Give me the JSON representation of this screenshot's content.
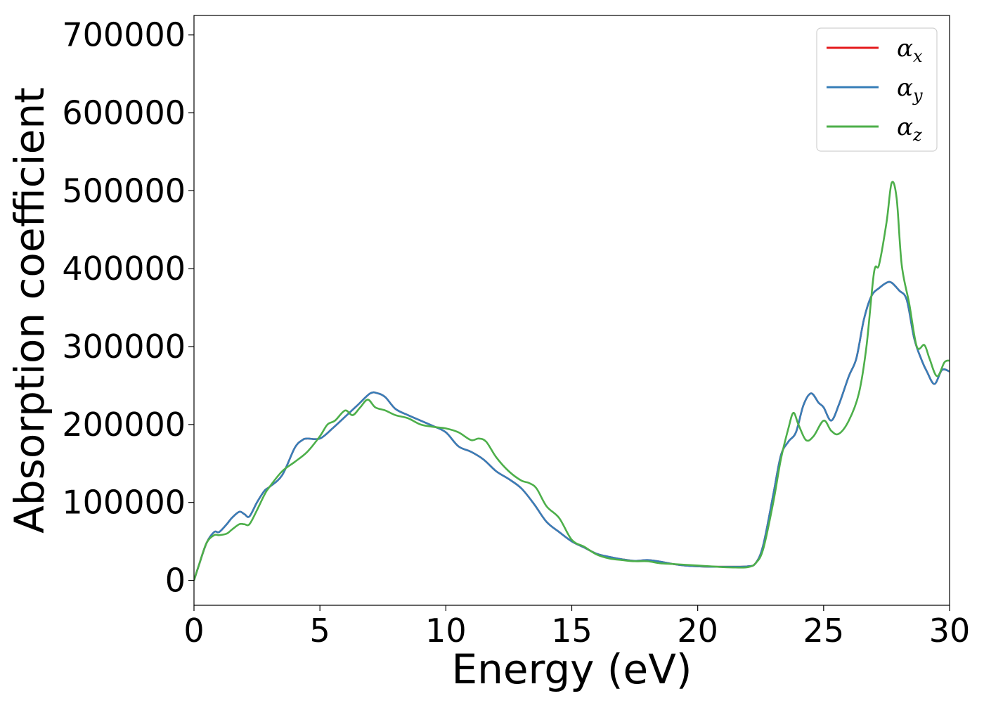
{
  "chart_data": {
    "type": "line",
    "title": "",
    "xlabel": "Energy (eV)",
    "ylabel": "Absorption coefficient",
    "xlim": [
      0,
      30
    ],
    "ylim": [
      -32000,
      725000
    ],
    "xticks": [
      0,
      5,
      10,
      15,
      20,
      25,
      30
    ],
    "yticks": [
      0,
      100000,
      200000,
      300000,
      400000,
      500000,
      600000,
      700000
    ],
    "grid": false,
    "legend_position": "top-right",
    "series": [
      {
        "name": "αx",
        "legend_symbol": "α",
        "legend_subscript": "x",
        "color": "#e41a1c",
        "x": [
          0,
          0.2,
          0.5,
          0.8,
          1.0,
          1.3,
          1.5,
          1.8,
          2.0,
          2.2,
          2.5,
          2.8,
          3.0,
          3.5,
          4.0,
          4.3,
          4.5,
          5.0,
          5.5,
          6.0,
          6.5,
          7.0,
          7.3,
          7.6,
          8.0,
          8.5,
          9.0,
          9.5,
          10.0,
          10.5,
          11.0,
          11.5,
          12.0,
          12.5,
          13.0,
          13.5,
          14.0,
          14.5,
          15.0,
          15.5,
          16.0,
          16.5,
          17.0,
          17.5,
          18.0,
          18.5,
          19.0,
          19.5,
          20.0,
          20.5,
          21.0,
          21.5,
          22.0,
          22.3,
          22.6,
          23.0,
          23.3,
          23.6,
          23.9,
          24.2,
          24.5,
          24.8,
          25.0,
          25.3,
          25.6,
          26.0,
          26.3,
          26.6,
          26.9,
          27.2,
          27.5,
          27.7,
          28.0,
          28.3,
          28.6,
          28.9,
          29.1,
          29.4,
          29.7,
          30.0
        ],
        "y": [
          0,
          20000,
          48000,
          62000,
          62000,
          72000,
          80000,
          88000,
          85000,
          82000,
          100000,
          115000,
          120000,
          135000,
          170000,
          180000,
          182000,
          182000,
          195000,
          210000,
          225000,
          240000,
          240000,
          235000,
          220000,
          212000,
          205000,
          198000,
          190000,
          172000,
          165000,
          155000,
          140000,
          130000,
          118000,
          98000,
          75000,
          62000,
          50000,
          42000,
          34000,
          30000,
          27000,
          25000,
          26000,
          24000,
          21000,
          19000,
          18000,
          17500,
          17500,
          17500,
          18000,
          22000,
          45000,
          110000,
          160000,
          178000,
          190000,
          225000,
          240000,
          228000,
          222000,
          205000,
          225000,
          262000,
          285000,
          335000,
          365000,
          375000,
          382000,
          382000,
          372000,
          360000,
          310000,
          282000,
          268000,
          252000,
          270000,
          268000
        ]
      },
      {
        "name": "αy",
        "legend_symbol": "α",
        "legend_subscript": "y",
        "color": "#377eb8",
        "x": [
          0,
          0.2,
          0.5,
          0.8,
          1.0,
          1.3,
          1.5,
          1.8,
          2.0,
          2.2,
          2.5,
          2.8,
          3.0,
          3.5,
          4.0,
          4.3,
          4.5,
          5.0,
          5.5,
          6.0,
          6.5,
          7.0,
          7.3,
          7.6,
          8.0,
          8.5,
          9.0,
          9.5,
          10.0,
          10.5,
          11.0,
          11.5,
          12.0,
          12.5,
          13.0,
          13.5,
          14.0,
          14.5,
          15.0,
          15.5,
          16.0,
          16.5,
          17.0,
          17.5,
          18.0,
          18.5,
          19.0,
          19.5,
          20.0,
          20.5,
          21.0,
          21.5,
          22.0,
          22.3,
          22.6,
          23.0,
          23.3,
          23.6,
          23.9,
          24.2,
          24.5,
          24.8,
          25.0,
          25.3,
          25.6,
          26.0,
          26.3,
          26.6,
          26.9,
          27.2,
          27.5,
          27.7,
          28.0,
          28.3,
          28.6,
          28.9,
          29.1,
          29.4,
          29.7,
          30.0
        ],
        "y": [
          0,
          20000,
          48000,
          62000,
          62000,
          72000,
          80000,
          88000,
          85000,
          82000,
          100000,
          115000,
          120000,
          135000,
          170000,
          180000,
          182000,
          182000,
          195000,
          210000,
          225000,
          240000,
          240000,
          235000,
          220000,
          212000,
          205000,
          198000,
          190000,
          172000,
          165000,
          155000,
          140000,
          130000,
          118000,
          98000,
          75000,
          62000,
          50000,
          42000,
          34000,
          30000,
          27000,
          25000,
          26000,
          24000,
          21000,
          19000,
          18000,
          17500,
          17500,
          17500,
          18000,
          22000,
          45000,
          110000,
          160000,
          178000,
          190000,
          225000,
          240000,
          228000,
          222000,
          205000,
          225000,
          262000,
          285000,
          335000,
          365000,
          375000,
          382000,
          382000,
          372000,
          360000,
          310000,
          282000,
          268000,
          252000,
          270000,
          268000
        ]
      },
      {
        "name": "αz",
        "legend_symbol": "α",
        "legend_subscript": "z",
        "color": "#4daf4a",
        "x": [
          0,
          0.2,
          0.5,
          0.8,
          1.0,
          1.3,
          1.5,
          1.8,
          2.0,
          2.2,
          2.5,
          2.8,
          3.0,
          3.5,
          4.0,
          4.5,
          5.0,
          5.3,
          5.6,
          6.0,
          6.3,
          6.6,
          6.9,
          7.2,
          7.6,
          8.0,
          8.5,
          9.0,
          9.5,
          10.0,
          10.5,
          11.0,
          11.3,
          11.6,
          12.0,
          12.5,
          13.0,
          13.3,
          13.6,
          14.0,
          14.5,
          15.0,
          15.5,
          16.0,
          16.5,
          17.0,
          17.5,
          18.0,
          18.5,
          19.0,
          19.5,
          20.0,
          20.5,
          21.0,
          21.5,
          22.0,
          22.3,
          22.6,
          23.0,
          23.3,
          23.6,
          23.8,
          24.0,
          24.3,
          24.6,
          25.0,
          25.3,
          25.6,
          26.0,
          26.4,
          26.7,
          27.0,
          27.2,
          27.5,
          27.7,
          27.9,
          28.1,
          28.4,
          28.7,
          29.0,
          29.2,
          29.5,
          29.8,
          30.0
        ],
        "y": [
          0,
          20000,
          48000,
          58000,
          58000,
          60000,
          65000,
          72000,
          72000,
          72000,
          90000,
          110000,
          120000,
          140000,
          152000,
          165000,
          185000,
          200000,
          205000,
          218000,
          212000,
          222000,
          232000,
          222000,
          218000,
          212000,
          208000,
          200000,
          197000,
          195000,
          190000,
          180000,
          182000,
          178000,
          158000,
          140000,
          128000,
          125000,
          118000,
          95000,
          80000,
          52000,
          43000,
          33000,
          28000,
          26000,
          24500,
          24500,
          22000,
          21000,
          20000,
          19000,
          18000,
          17000,
          16500,
          17000,
          22000,
          40000,
          100000,
          155000,
          195000,
          215000,
          200000,
          180000,
          185000,
          205000,
          192000,
          188000,
          205000,
          240000,
          300000,
          395000,
          405000,
          460000,
          510000,
          490000,
          405000,
          355000,
          300000,
          302000,
          285000,
          262000,
          280000,
          282000
        ]
      }
    ]
  }
}
